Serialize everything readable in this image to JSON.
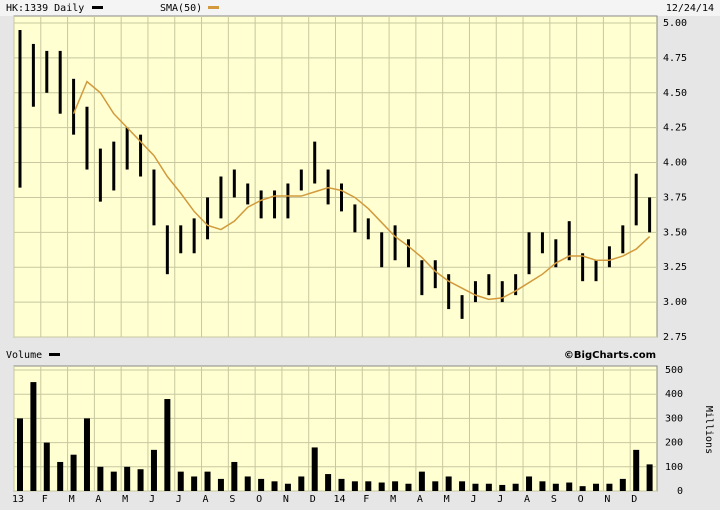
{
  "chart_data": {
    "type": "stock",
    "date": "12/24/14",
    "credit": "©BigCharts.com",
    "grid": true,
    "x": [
      0,
      0.5,
      1,
      1.5,
      2,
      2.5,
      3,
      3.5,
      4,
      4.5,
      5,
      5.5,
      6,
      6.5,
      7,
      7.5,
      8,
      8.5,
      9,
      9.5,
      10,
      10.5,
      11,
      11.5,
      12,
      12.5,
      13,
      13.5,
      14,
      14.5,
      15,
      15.5,
      16,
      16.5,
      17,
      17.5,
      18,
      18.5,
      19,
      19.5,
      20,
      20.5,
      21,
      21.5,
      22,
      22.5,
      23,
      23.5
    ],
    "xlim": [
      0,
      24
    ],
    "xticks": [
      {
        "value": 0,
        "label": "13"
      },
      {
        "value": 1,
        "label": "F"
      },
      {
        "value": 2,
        "label": "M"
      },
      {
        "value": 3,
        "label": "A"
      },
      {
        "value": 4,
        "label": "M"
      },
      {
        "value": 5,
        "label": "J"
      },
      {
        "value": 6,
        "label": "J"
      },
      {
        "value": 7,
        "label": "A"
      },
      {
        "value": 8,
        "label": "S"
      },
      {
        "value": 9,
        "label": "O"
      },
      {
        "value": 10,
        "label": "N"
      },
      {
        "value": 11,
        "label": "D"
      },
      {
        "value": 12,
        "label": "14"
      },
      {
        "value": 13,
        "label": "F"
      },
      {
        "value": 14,
        "label": "M"
      },
      {
        "value": 15,
        "label": "A"
      },
      {
        "value": 16,
        "label": "M"
      },
      {
        "value": 17,
        "label": "J"
      },
      {
        "value": 18,
        "label": "J"
      },
      {
        "value": 19,
        "label": "A"
      },
      {
        "value": 20,
        "label": "S"
      },
      {
        "value": 21,
        "label": "O"
      },
      {
        "value": 22,
        "label": "N"
      },
      {
        "value": 23,
        "label": "D"
      }
    ],
    "ylim": [
      2.75,
      5
    ],
    "yticks": [
      {
        "value": 2.75,
        "label": "2.75"
      },
      {
        "value": 3,
        "label": "3.00"
      },
      {
        "value": 3.25,
        "label": "3.25"
      },
      {
        "value": 3.5,
        "label": "3.50"
      },
      {
        "value": 3.75,
        "label": "3.75"
      },
      {
        "value": 4,
        "label": "4.00"
      },
      {
        "value": 4.25,
        "label": "4.25"
      },
      {
        "value": 4.5,
        "label": "4.50"
      },
      {
        "value": 4.75,
        "label": "4.75"
      },
      {
        "value": 5,
        "label": "5.00"
      }
    ],
    "series": [
      {
        "name": "HK:1339 Daily",
        "color": "#000000",
        "high": [
          4.95,
          4.85,
          4.8,
          4.8,
          4.6,
          4.4,
          4.1,
          4.15,
          4.25,
          4.2,
          3.95,
          3.55,
          3.55,
          3.6,
          3.75,
          3.9,
          3.95,
          3.85,
          3.8,
          3.8,
          3.85,
          3.95,
          4.15,
          3.95,
          3.85,
          3.7,
          3.6,
          3.5,
          3.55,
          3.45,
          3.3,
          3.3,
          3.2,
          3.05,
          3.15,
          3.2,
          3.15,
          3.2,
          3.5,
          3.5,
          3.45,
          3.58,
          3.35,
          3.3,
          3.4,
          3.55,
          3.92,
          3.75
        ],
        "low": [
          3.82,
          4.4,
          4.5,
          4.35,
          4.2,
          3.95,
          3.72,
          3.8,
          3.95,
          3.9,
          3.55,
          3.2,
          3.35,
          3.35,
          3.45,
          3.6,
          3.75,
          3.7,
          3.6,
          3.6,
          3.6,
          3.8,
          3.85,
          3.7,
          3.65,
          3.5,
          3.45,
          3.25,
          3.3,
          3.25,
          3.05,
          3.1,
          2.95,
          2.88,
          3.0,
          3.05,
          3.0,
          3.05,
          3.2,
          3.35,
          3.25,
          3.3,
          3.15,
          3.15,
          3.25,
          3.35,
          3.55,
          3.5
        ]
      },
      {
        "name": "SMA(50)",
        "color": "#d29a3c",
        "values": [
          null,
          null,
          null,
          null,
          4.35,
          4.58,
          4.5,
          4.35,
          4.25,
          4.15,
          4.05,
          3.9,
          3.78,
          3.65,
          3.55,
          3.52,
          3.58,
          3.68,
          3.73,
          3.76,
          3.76,
          3.76,
          3.79,
          3.82,
          3.8,
          3.75,
          3.67,
          3.57,
          3.47,
          3.4,
          3.32,
          3.22,
          3.15,
          3.1,
          3.05,
          3.02,
          3.03,
          3.08,
          3.14,
          3.2,
          3.28,
          3.33,
          3.33,
          3.3,
          3.3,
          3.33,
          3.38,
          3.47
        ]
      }
    ],
    "volume": {
      "name": "Volume",
      "color": "#000000",
      "ylabel": "Millions",
      "ylim": [
        0,
        500
      ],
      "yticks": [
        0,
        100,
        200,
        300,
        400,
        500
      ],
      "values": [
        300,
        450,
        200,
        120,
        150,
        300,
        100,
        80,
        100,
        90,
        170,
        380,
        80,
        60,
        80,
        50,
        120,
        60,
        50,
        40,
        30,
        60,
        180,
        70,
        50,
        40,
        40,
        35,
        40,
        30,
        80,
        40,
        60,
        40,
        30,
        30,
        25,
        30,
        60,
        40,
        30,
        35,
        20,
        30,
        30,
        50,
        170,
        110
      ]
    }
  }
}
